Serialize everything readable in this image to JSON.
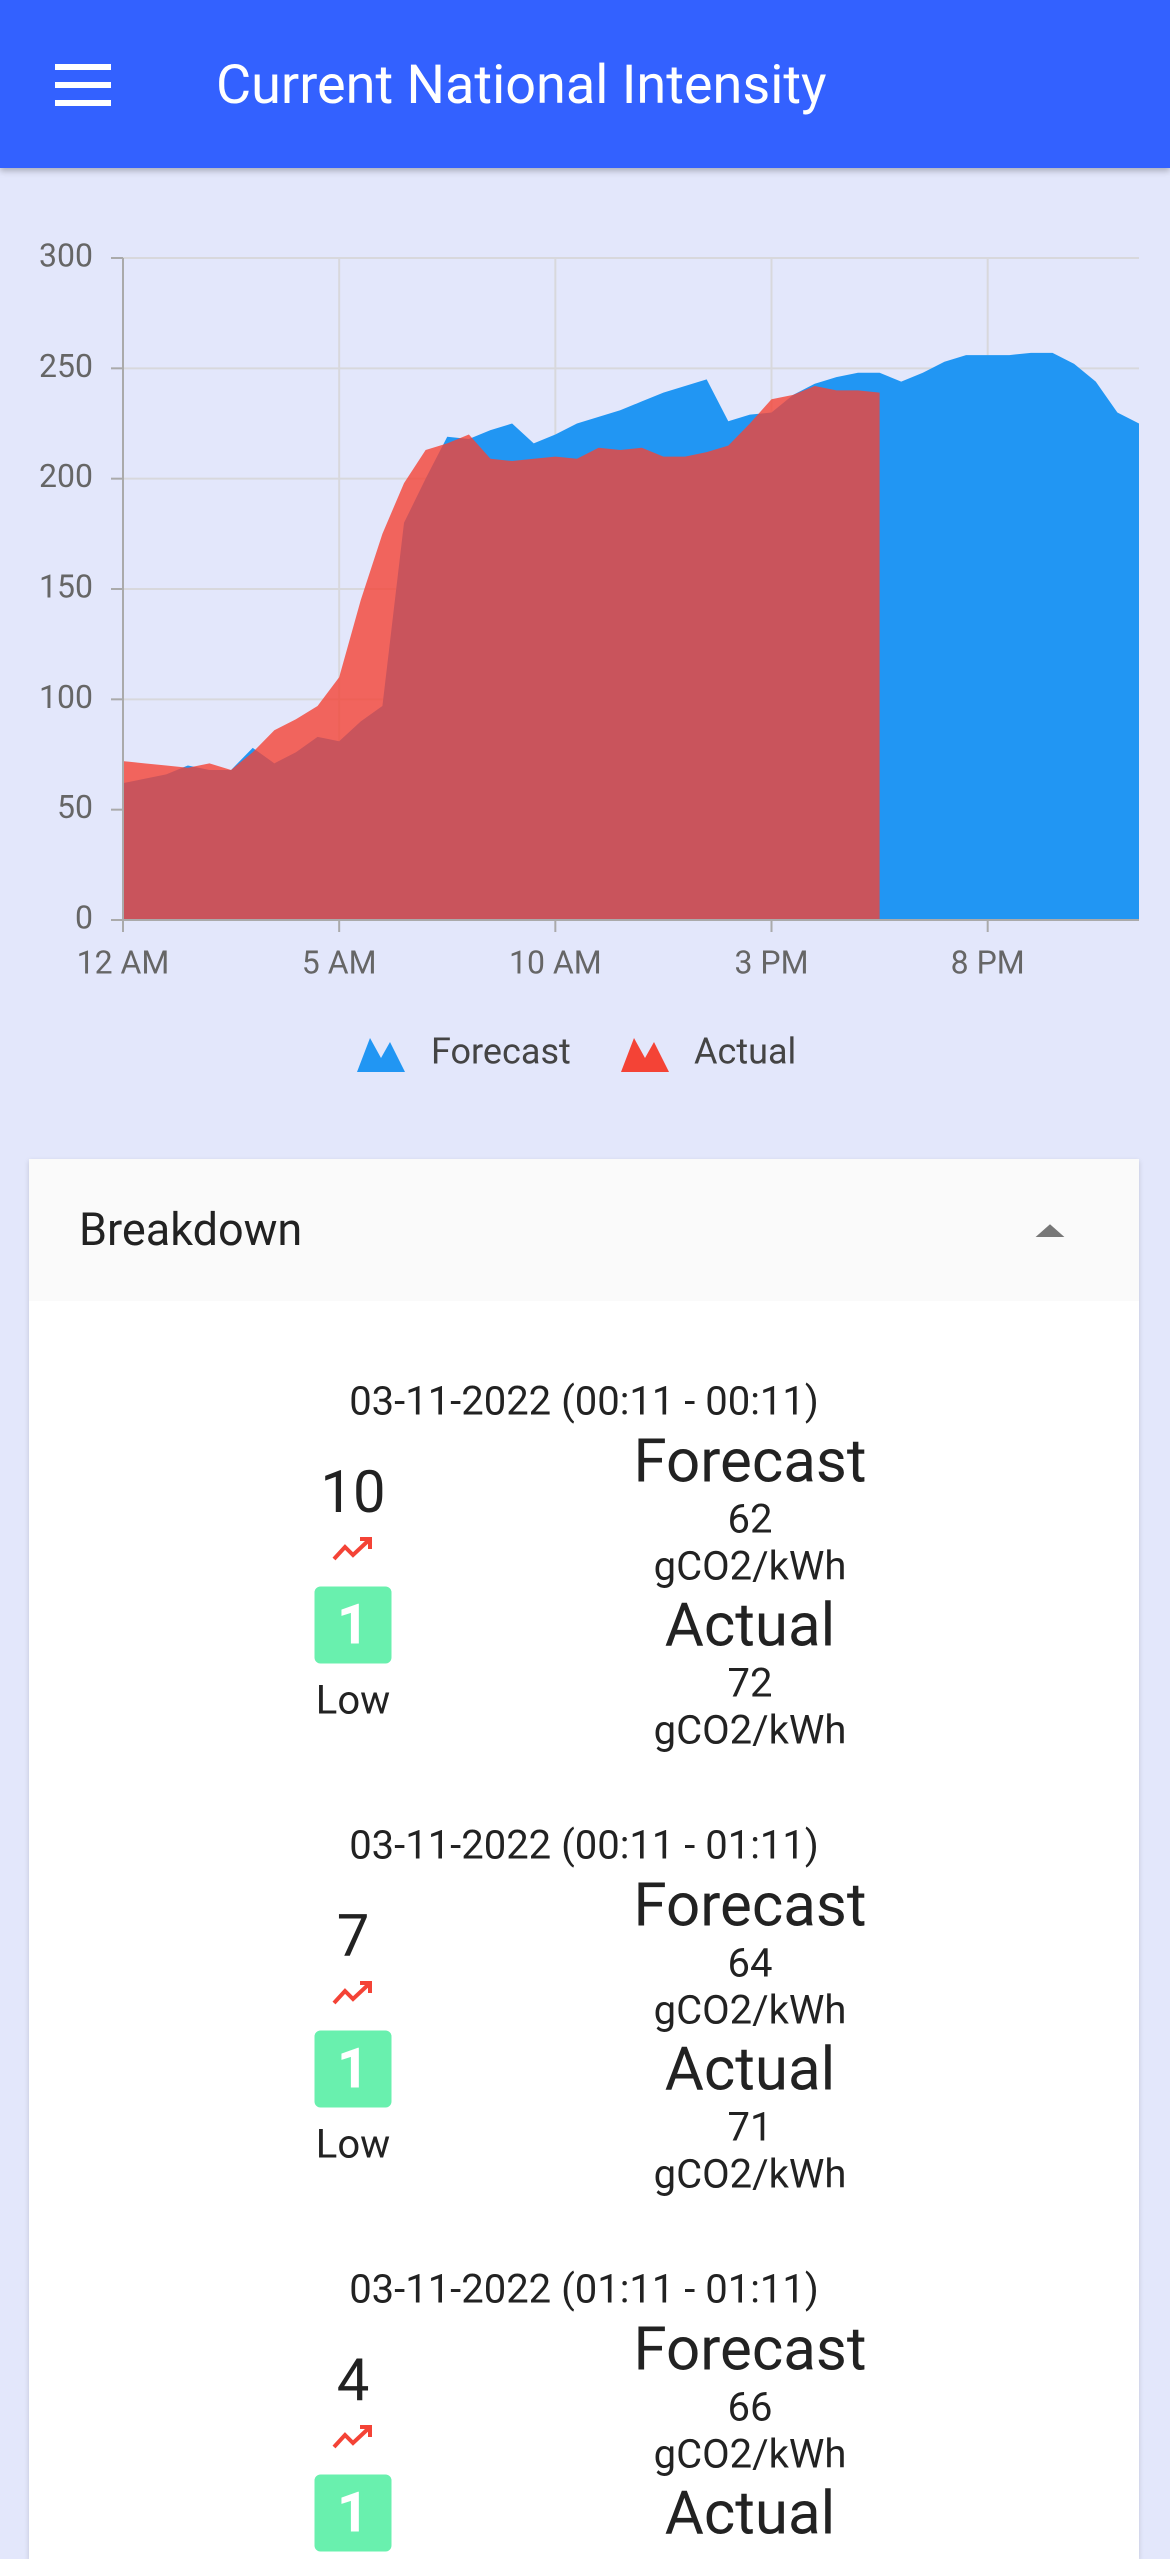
{
  "app_bar": {
    "title": "Current National Intensity"
  },
  "chart_data": {
    "type": "area",
    "x": [
      0,
      0.5,
      1,
      1.5,
      2,
      2.5,
      3,
      3.5,
      4,
      4.5,
      5,
      5.5,
      6,
      6.5,
      7,
      7.5,
      8,
      8.5,
      9,
      9.5,
      10,
      10.5,
      11,
      11.5,
      12,
      12.5,
      13,
      13.5,
      14,
      14.5,
      15,
      15.5,
      16,
      16.5,
      17,
      17.5,
      18,
      18.5,
      19,
      19.5,
      20,
      20.5,
      21,
      21.5,
      22,
      22.5,
      23,
      23.5
    ],
    "xlim": [
      0,
      23.5
    ],
    "xticks": [
      {
        "value": 0,
        "label": "12 AM"
      },
      {
        "value": 5,
        "label": "5 AM"
      },
      {
        "value": 10,
        "label": "10 AM"
      },
      {
        "value": 15,
        "label": "3 PM"
      },
      {
        "value": 20,
        "label": "8 PM"
      }
    ],
    "ylim": [
      0,
      300
    ],
    "yticks": [
      0,
      50,
      100,
      150,
      200,
      250,
      300
    ],
    "grid": true,
    "series": [
      {
        "name": "Forecast",
        "color": "#2196f3",
        "values": [
          62,
          64,
          66,
          70,
          68,
          68,
          78,
          71,
          76,
          83,
          81,
          90,
          97,
          180,
          200,
          219,
          218,
          222,
          225,
          216,
          220,
          225,
          228,
          231,
          235,
          239,
          242,
          245,
          226,
          229,
          230,
          238,
          243,
          246,
          248,
          248,
          244,
          248,
          253,
          256,
          256,
          256,
          257,
          257,
          252,
          244,
          230,
          225
        ]
      },
      {
        "name": "Actual",
        "color": "#f44336",
        "values": [
          72,
          71,
          70,
          69,
          71,
          68,
          76,
          86,
          91,
          97,
          110,
          145,
          175,
          198,
          213,
          216,
          220,
          209,
          208,
          209,
          210,
          209,
          214,
          213,
          214,
          210,
          210,
          212,
          215,
          225,
          236,
          238,
          242,
          240,
          240,
          239,
          null,
          null,
          null,
          null,
          null,
          null,
          null,
          null,
          null,
          null,
          null,
          null
        ]
      }
    ]
  },
  "breakdown": {
    "title": "Breakdown",
    "items": [
      {
        "period": "03-11-2022 (00:11 - 00:11)",
        "index": "10",
        "badge": "1",
        "level": "Low",
        "forecast_label": "Forecast",
        "forecast_value": "62",
        "forecast_unit": "gCO2/kWh",
        "actual_label": "Actual",
        "actual_value": "72",
        "actual_unit": "gCO2/kWh"
      },
      {
        "period": "03-11-2022 (00:11 - 01:11)",
        "index": "7",
        "badge": "1",
        "level": "Low",
        "forecast_label": "Forecast",
        "forecast_value": "64",
        "forecast_unit": "gCO2/kWh",
        "actual_label": "Actual",
        "actual_value": "71",
        "actual_unit": "gCO2/kWh"
      },
      {
        "period": "03-11-2022 (01:11 - 01:11)",
        "index": "4",
        "badge": "1",
        "forecast_label": "Forecast",
        "forecast_value": "66",
        "forecast_unit": "gCO2/kWh",
        "actual_label": "Actual"
      }
    ]
  }
}
